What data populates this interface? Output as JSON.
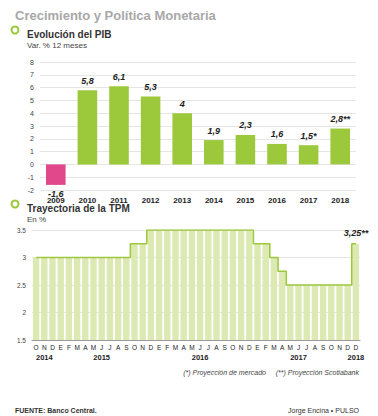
{
  "title": "Crecimiento y Política Monetaria",
  "source": "FUENTE: Banco Central.",
  "credit": "Jorge Encina • PULSO",
  "chart_data": [
    {
      "type": "bar",
      "title": "Evolución del PIB",
      "subtitle": "Var. % 12 meses",
      "categories": [
        "2009",
        "2010",
        "2011",
        "2012",
        "2013",
        "2014",
        "2015",
        "2016",
        "2017",
        "2018"
      ],
      "values": [
        -1.6,
        5.8,
        6.1,
        5.3,
        4,
        1.9,
        2.3,
        1.6,
        1.5,
        2.8
      ],
      "value_labels": [
        "-1,6",
        "5,8",
        "6,1",
        "5,3",
        "4",
        "1,9",
        "2,3",
        "1,6",
        "1,5*",
        "2,8**"
      ],
      "colors": [
        "#e0488b",
        "#9cc83c",
        "#9cc83c",
        "#9cc83c",
        "#9cc83c",
        "#9cc83c",
        "#9cc83c",
        "#9cc83c",
        "#9cc83c",
        "#9cc83c"
      ],
      "ylim": [
        -2,
        8
      ],
      "yticks": [
        -2,
        -1,
        0,
        1,
        2,
        3,
        4,
        5,
        6,
        7,
        8
      ],
      "grid": true,
      "data_labels": true
    },
    {
      "type": "bar",
      "title": "Trayectoria de la TPM",
      "subtitle": "En %",
      "categories": [
        "O",
        "N",
        "D",
        "E",
        "F",
        "M",
        "A",
        "M",
        "J",
        "J",
        "A",
        "S",
        "O",
        "N",
        "D",
        "E",
        "F",
        "M",
        "A",
        "M",
        "J",
        "J",
        "A",
        "S",
        "O",
        "N",
        "D",
        "E",
        "F",
        "M",
        "A",
        "M",
        "J",
        "J",
        "A",
        "S",
        "O",
        "N",
        "D",
        "D"
      ],
      "years": [
        null,
        "2014",
        null,
        null,
        null,
        null,
        null,
        null,
        "2015",
        null,
        null,
        null,
        null,
        null,
        null,
        null,
        null,
        null,
        null,
        null,
        "2016",
        null,
        null,
        null,
        null,
        null,
        null,
        null,
        null,
        null,
        null,
        null,
        "2017",
        null,
        null,
        null,
        null,
        null,
        null,
        "2018"
      ],
      "values": [
        3,
        3,
        3,
        3,
        3,
        3,
        3,
        3,
        3,
        3,
        3,
        3,
        3.25,
        3.25,
        3.5,
        3.5,
        3.5,
        3.5,
        3.5,
        3.5,
        3.5,
        3.5,
        3.5,
        3.5,
        3.5,
        3.5,
        3.5,
        3.25,
        3.25,
        3,
        2.75,
        2.5,
        2.5,
        2.5,
        2.5,
        2.5,
        2.5,
        2.5,
        2.5,
        3.25
      ],
      "value_labels": [
        null,
        null,
        null,
        null,
        null,
        null,
        null,
        null,
        null,
        null,
        null,
        null,
        null,
        null,
        null,
        null,
        null,
        null,
        null,
        null,
        null,
        null,
        null,
        null,
        null,
        null,
        null,
        null,
        null,
        null,
        null,
        null,
        null,
        null,
        null,
        null,
        null,
        null,
        null,
        "3,25**"
      ],
      "color": "#dce9b3",
      "ylim": [
        1.5,
        3.5
      ],
      "yticks": [
        1.5,
        2,
        2.5,
        3,
        3.5
      ],
      "grid": true,
      "notes": [
        "(*) Proyección de mercado",
        "(**) Proyección Scotiabank"
      ]
    }
  ]
}
